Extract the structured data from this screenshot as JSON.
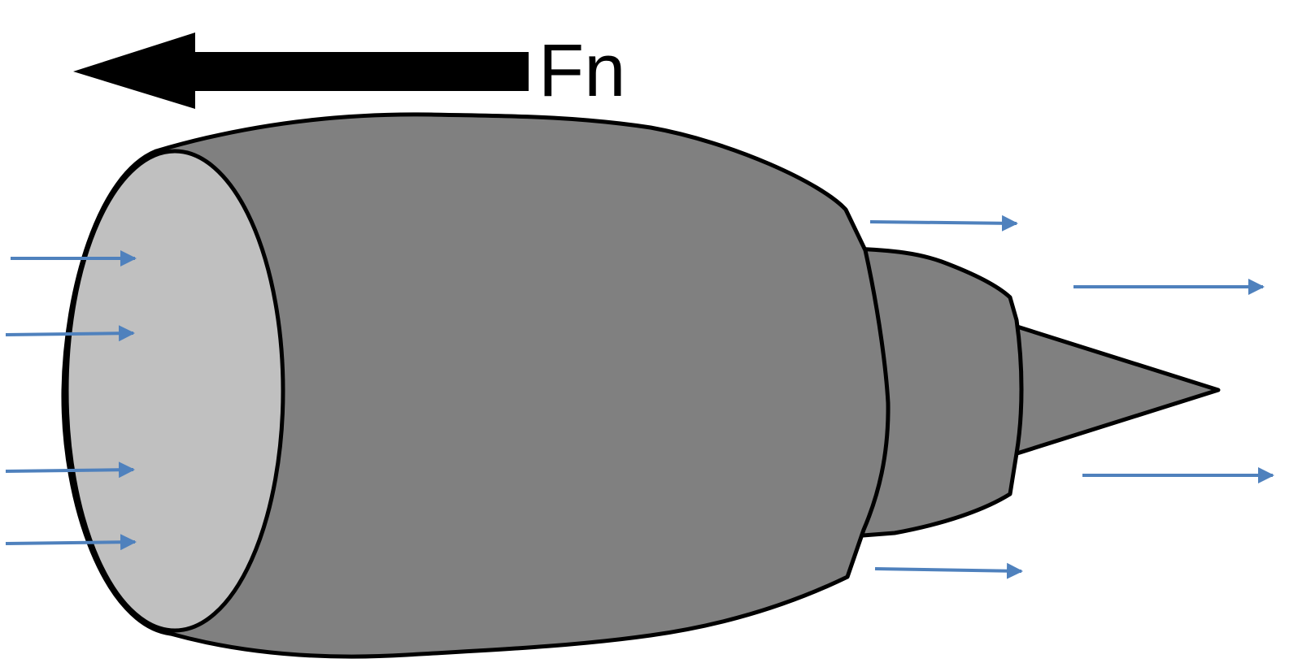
{
  "diagram": {
    "thrust_label": "Fn",
    "colors": {
      "background": "#ffffff",
      "outline": "#000000",
      "nacelle_fill": "#808080",
      "inlet_face_fill": "#c0c0c0",
      "flow_arrow": "#4f81bd",
      "thrust_arrow": "#000000"
    },
    "elements": {
      "thrust_arrow": "thrust-arrow",
      "inlet_flow_arrows": "airflow-arrow",
      "exhaust_flow_arrows": "airflow-arrow"
    }
  }
}
